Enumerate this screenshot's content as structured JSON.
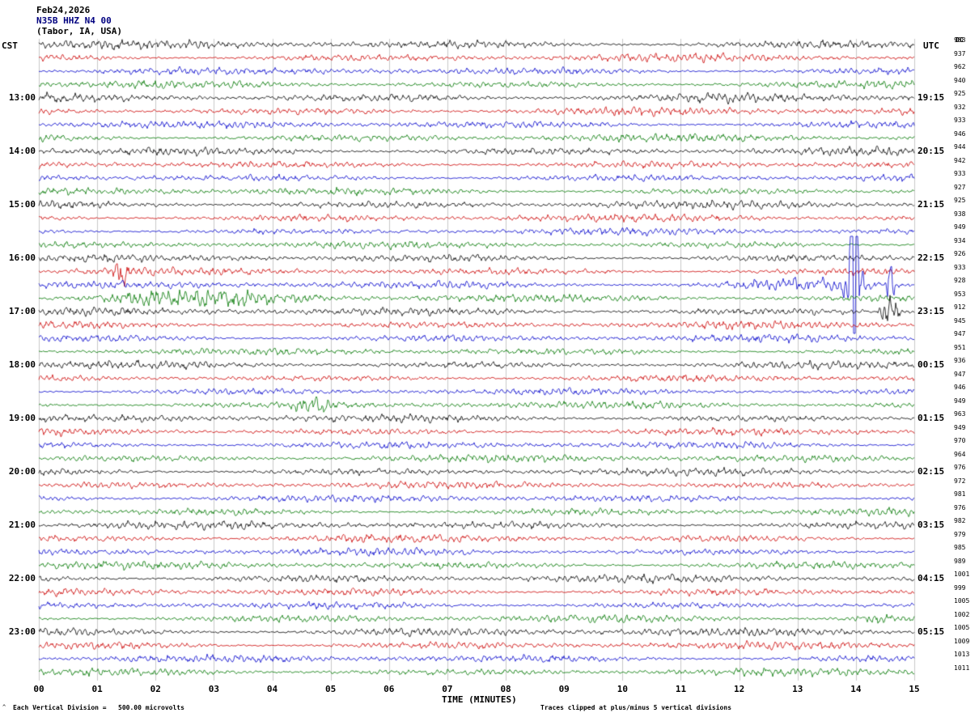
{
  "header": {
    "date": "Feb24,2026",
    "station": "N35B HHZ N4 00",
    "location": "(Tabor, IA, USA)",
    "left_tz": "CST",
    "right_tz": "UTC",
    "dc_label": "DC"
  },
  "footer": {
    "xlabel": "TIME (MINUTES)",
    "scale_note": "Each Vertical Division =   500.00 microvolts",
    "clip_note": "Traces clipped at plus/minus 5 vertical divisions",
    "corner_mark": "^"
  },
  "chart_data": {
    "type": "line",
    "variant": "helicorder-seismogram",
    "title": "N35B HHZ N4 00 (Tabor, IA, USA) Feb24,2026",
    "xlabel": "TIME (MINUTES)",
    "x_range": [
      0,
      15
    ],
    "x_ticks": [
      "00",
      "01",
      "02",
      "03",
      "04",
      "05",
      "06",
      "07",
      "08",
      "09",
      "10",
      "11",
      "12",
      "13",
      "14",
      "15"
    ],
    "rows": 48,
    "minutes_per_row": 15,
    "start_time_cst": "12:00",
    "grid": true,
    "grid_color": "#c8c8c8",
    "trace_color_cycle": [
      "#000000",
      "#cc0000",
      "#0000cc",
      "#007700"
    ],
    "left_time_labels": [
      {
        "row": 4,
        "label": "13:00"
      },
      {
        "row": 8,
        "label": "14:00"
      },
      {
        "row": 12,
        "label": "15:00"
      },
      {
        "row": 16,
        "label": "16:00"
      },
      {
        "row": 20,
        "label": "17:00"
      },
      {
        "row": 24,
        "label": "18:00"
      },
      {
        "row": 28,
        "label": "19:00"
      },
      {
        "row": 32,
        "label": "20:00"
      },
      {
        "row": 36,
        "label": "21:00"
      },
      {
        "row": 40,
        "label": "22:00"
      },
      {
        "row": 44,
        "label": "23:00"
      }
    ],
    "right_time_labels": [
      {
        "row": 4,
        "label": "19:15"
      },
      {
        "row": 8,
        "label": "20:15"
      },
      {
        "row": 12,
        "label": "21:15"
      },
      {
        "row": 16,
        "label": "22:15"
      },
      {
        "row": 20,
        "label": "23:15"
      },
      {
        "row": 24,
        "label": "00:15"
      },
      {
        "row": 28,
        "label": "01:15"
      },
      {
        "row": 32,
        "label": "02:15"
      },
      {
        "row": 36,
        "label": "03:15"
      },
      {
        "row": 40,
        "label": "04:15"
      },
      {
        "row": 44,
        "label": "05:15"
      }
    ],
    "dc_offsets": [
      "958",
      "937",
      "962",
      "940",
      "925",
      "932",
      "933",
      "946",
      "944",
      "942",
      "933",
      "927",
      "925",
      "938",
      "949",
      "934",
      "926",
      "933",
      "928",
      "953",
      "912",
      "945",
      "947",
      "951",
      "936",
      "947",
      "946",
      "949",
      "963",
      "949",
      "970",
      "964",
      "976",
      "972",
      "981",
      "976",
      "982",
      "979",
      "985",
      "989",
      "1001",
      "999",
      "1005",
      "1002",
      "1005",
      "1009",
      "1013",
      "1011"
    ],
    "row_amplitudes": [
      3.4,
      3.1,
      2.9,
      3.0,
      3.6,
      3.2,
      3.0,
      3.1,
      3.3,
      3.0,
      2.9,
      3.0,
      3.2,
      3.0,
      2.8,
      2.9,
      3.1,
      2.9,
      3.0,
      3.1,
      3.2,
      3.0,
      2.9,
      2.8,
      3.0,
      2.8,
      2.7,
      2.9,
      3.1,
      2.9,
      2.8,
      3.0,
      3.0,
      2.9,
      2.8,
      2.9,
      3.1,
      3.0,
      2.9,
      3.0,
      3.2,
      3.0,
      2.9,
      3.0,
      3.3,
      3.1,
      3.0,
      3.1
    ],
    "events": [
      {
        "row": 17,
        "start": 1.25,
        "end": 1.6,
        "gain": 5
      },
      {
        "row": 18,
        "start": 11.5,
        "end": 15.0,
        "gain": 2.4
      },
      {
        "row": 18,
        "start": 13.75,
        "end": 14.2,
        "gain": 9
      },
      {
        "row": 18,
        "start": 13.88,
        "end": 14.05,
        "gain": 20
      },
      {
        "row": 18,
        "start": 14.5,
        "end": 14.68,
        "gain": 10
      },
      {
        "row": 19,
        "start": -1.2,
        "end": 5.2,
        "gain": 2.8
      },
      {
        "row": 20,
        "start": 14.35,
        "end": 14.8,
        "gain": 8
      },
      {
        "row": 27,
        "start": 4.3,
        "end": 5.1,
        "gain": 2.8
      },
      {
        "row": 43,
        "start": 13.9,
        "end": 14.7,
        "gain": 2.2
      }
    ],
    "scale_note": "Each Vertical Division =   500.00 microvolts",
    "clip_note": "Traces clipped at plus/minus 5 vertical divisions"
  }
}
